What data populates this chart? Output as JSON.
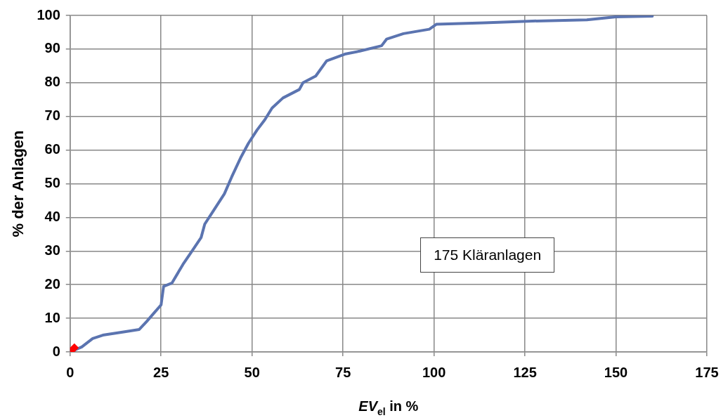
{
  "chart_data": {
    "type": "line",
    "xlabel": "EV$_{el}$ in %",
    "ylabel": "% der Anlagen",
    "annotations": [
      "175 Kläranlagen"
    ],
    "series": [
      {
        "color": "#5b74b0",
        "marker": "none",
        "x": [
          0,
          3.2,
          6.2,
          9,
          15,
          19,
          21,
          23,
          25,
          25.7,
          28,
          31,
          33.5,
          36,
          37,
          39.4,
          42.4,
          44.4,
          47,
          49,
          51.4,
          53.5,
          55.5,
          58.5,
          63,
          64,
          67.5,
          70.5,
          75.5,
          79.6,
          85.6,
          87,
          91.6,
          98.7,
          100.7,
          113.7,
          125.8,
          142,
          150,
          160
        ],
        "values": [
          0,
          1.5,
          4,
          5,
          6,
          6.7,
          9,
          11.5,
          14,
          19.5,
          20.5,
          26,
          30,
          34,
          38,
          42,
          47,
          52,
          58,
          62,
          66,
          69,
          72.5,
          75.5,
          78,
          80,
          82,
          86.5,
          88.5,
          89.4,
          91,
          93,
          94.6,
          95.9,
          97.4,
          97.8,
          98.3,
          98.7,
          99.6,
          99.8
        ]
      },
      {
        "type": "scatter",
        "color": "#ff0000",
        "marker": "cross",
        "x": [
          0
        ],
        "values": [
          0
        ]
      }
    ],
    "xlim": [
      0,
      175
    ],
    "xticks": [
      0,
      25,
      50,
      75,
      100,
      125,
      150,
      175
    ],
    "ylim": [
      0,
      100
    ],
    "yticks": [
      0,
      10,
      20,
      30,
      40,
      50,
      60,
      70,
      80,
      90,
      100
    ],
    "grid": true,
    "legend": false
  }
}
